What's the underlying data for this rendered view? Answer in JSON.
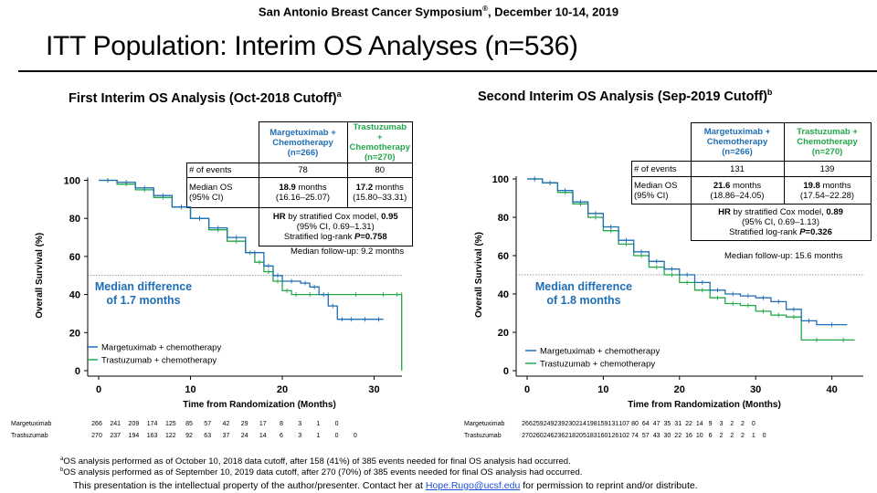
{
  "header": {
    "banner": "San Antonio Breast Cancer Symposium",
    "banner_mark": "®",
    "banner_date": ", December 10-14, 2019",
    "title": "ITT Population: Interim OS Analyses (n=536)"
  },
  "colors": {
    "margetuximab": "#1f6eb5",
    "trastuzumab": "#22a84a"
  },
  "panels": [
    {
      "title": "First Interim OS Analysis (Oct-2018 Cutoff)",
      "title_sup": "a",
      "stats": {
        "arm1_h1": "Margetuximab +",
        "arm1_h2": "Chemotherapy",
        "arm1_h3": "(n=266)",
        "arm2_h1": "Trastuzumab +",
        "arm2_h2": "Chemotherapy",
        "arm2_h3": "(n=270)",
        "events_label": "# of events",
        "events1": "78",
        "events2": "80",
        "os_label1": "Median OS",
        "os_label2": "(95% CI)",
        "os1_val": "18.9",
        "os1_unit": " months",
        "os1_ci": "(16.16–25.07)",
        "os2_val": "17.2",
        "os2_unit": " months",
        "os2_ci": "(15.80–33.31)",
        "hr_label": "HR",
        "hr_text": " by stratified Cox model, ",
        "hr_value": "0.95",
        "hr_ci": "(95% CI, 0.69–1.31)",
        "p_text": "Stratified log-rank ",
        "p_label": "P",
        "p_value": "=0.758"
      },
      "followup": "Median follow-up: 9.2 months",
      "median_diff_1": "Median difference",
      "median_diff_2": "of 1.7 months"
    },
    {
      "title": "Second Interim OS Analysis (Sep-2019 Cutoff)",
      "title_sup": "b",
      "stats": {
        "arm1_h1": "Margetuximab +",
        "arm1_h2": "Chemotherapy",
        "arm1_h3": "(n=266)",
        "arm2_h1": "Trastuzumab +",
        "arm2_h2": "Chemotherapy",
        "arm2_h3": "(n=270)",
        "events_label": "# of events",
        "events1": "131",
        "events2": "139",
        "os_label1": "Median OS",
        "os_label2": "(95% CI)",
        "os1_val": "21.6",
        "os1_unit": " months",
        "os1_ci": "(18.86–24.05)",
        "os2_val": "19.8",
        "os2_unit": " months",
        "os2_ci": "(17.54–22.28)",
        "hr_label": "HR",
        "hr_text": " by stratified Cox model, ",
        "hr_value": "0.89",
        "hr_ci": "(95% CI, 0.69–1.13)",
        "p_text": "Stratified log-rank ",
        "p_label": "P",
        "p_value": "=0.326"
      },
      "followup": "Median follow-up: 15.6 months",
      "median_diff_1": "Median difference",
      "median_diff_2": "of 1.8 months"
    }
  ],
  "chart_data": [
    {
      "type": "line",
      "title": "First Interim OS Analysis (Oct-2018 Cutoff)",
      "xlabel": "Time from Randomization (Months)",
      "ylabel": "Overall Survival (%)",
      "xlim": [
        0,
        34
      ],
      "ylim": [
        0,
        100
      ],
      "xticks": [
        0,
        10,
        20,
        30
      ],
      "yticks": [
        0,
        20,
        40,
        60,
        80,
        100
      ],
      "reference_line": 50,
      "legend": [
        "Margetuximab + chemotherapy",
        "Trastuzumab + chemotherapy"
      ],
      "series": [
        {
          "name": "Margetuximab + chemotherapy",
          "x": [
            0,
            2,
            4,
            6,
            8,
            10,
            12,
            14,
            16,
            18,
            19,
            20,
            22,
            23,
            24,
            25,
            26,
            27,
            28,
            30,
            31
          ],
          "y": [
            100,
            99,
            96,
            92,
            86,
            80,
            75,
            70,
            62,
            55,
            50,
            47,
            46,
            44,
            40,
            34,
            27,
            27,
            27,
            27,
            27
          ]
        },
        {
          "name": "Trastuzumab + chemotherapy",
          "x": [
            0,
            2,
            4,
            6,
            8,
            10,
            12,
            14,
            16,
            17,
            18,
            19,
            20,
            21,
            22,
            24,
            26,
            30,
            32,
            33,
            33
          ],
          "y": [
            100,
            98,
            95,
            91,
            86,
            80,
            74,
            68,
            62,
            57,
            52,
            47,
            42,
            40,
            40,
            40,
            40,
            40,
            40,
            40,
            0
          ]
        }
      ],
      "at_risk": {
        "rows": [
          {
            "label": "Margetuximab",
            "values": [
              "266",
              "241",
              "209",
              "174",
              "125",
              "85",
              "57",
              "42",
              "29",
              "17",
              "8",
              "3",
              "1",
              "0"
            ]
          },
          {
            "label": "Trastuzumab",
            "values": [
              "270",
              "237",
              "194",
              "163",
              "122",
              "92",
              "63",
              "37",
              "24",
              "14",
              "6",
              "3",
              "1",
              "0",
              "0"
            ]
          }
        ]
      }
    },
    {
      "type": "line",
      "title": "Second Interim OS Analysis (Sep-2019 Cutoff)",
      "xlabel": "Time from Randomization (Months)",
      "ylabel": "Overall Survival (%)",
      "xlim": [
        0,
        44
      ],
      "ylim": [
        0,
        100
      ],
      "xticks": [
        0,
        10,
        20,
        30,
        40
      ],
      "yticks": [
        0,
        20,
        40,
        60,
        80,
        100
      ],
      "reference_line": 50,
      "legend": [
        "Margetuximab + chemotherapy",
        "Trastuzumab + chemotherapy"
      ],
      "series": [
        {
          "name": "Margetuximab + chemotherapy",
          "x": [
            0,
            2,
            4,
            6,
            8,
            10,
            12,
            14,
            16,
            18,
            20,
            22,
            24,
            26,
            28,
            30,
            32,
            34,
            36,
            38,
            42
          ],
          "y": [
            100,
            98,
            94,
            88,
            82,
            75,
            68,
            62,
            57,
            53,
            50,
            46,
            42,
            40,
            39,
            38,
            36,
            32,
            26,
            24,
            24
          ]
        },
        {
          "name": "Trastuzumab + chemotherapy",
          "x": [
            0,
            2,
            4,
            6,
            8,
            10,
            12,
            14,
            16,
            18,
            20,
            22,
            24,
            26,
            28,
            30,
            32,
            34,
            36,
            40,
            43
          ],
          "y": [
            100,
            98,
            93,
            87,
            80,
            73,
            66,
            60,
            54,
            50,
            46,
            42,
            38,
            35,
            34,
            31,
            29,
            28,
            16,
            16,
            16
          ]
        }
      ],
      "at_risk": {
        "rows": [
          {
            "label": "Margetuximab",
            "values": [
              "266",
              "259",
              "249",
              "239",
              "230",
              "214",
              "198",
              "159",
              "131",
              "107",
              "80",
              "64",
              "47",
              "35",
              "31",
              "22",
              "14",
              "9",
              "3",
              "2",
              "2",
              "0"
            ]
          },
          {
            "label": "Trastuzumab",
            "values": [
              "270",
              "260",
              "246",
              "236",
              "218",
              "205",
              "183",
              "160",
              "126",
              "102",
              "74",
              "57",
              "43",
              "30",
              "22",
              "16",
              "10",
              "6",
              "2",
              "2",
              "2",
              "1",
              "0"
            ]
          }
        ]
      }
    }
  ],
  "footnotes": {
    "a_mark": "a",
    "a_text": "OS analysis performed as of October 10, 2018 data cutoff, after 158 (41%) of 385 events needed for final OS analysis had occurred.",
    "b_mark": "b",
    "b_text": "OS analysis performed as of September 10, 2019 data cutoff, after 270 (70%) of 385 events needed for final OS analysis had occurred.",
    "ip_text": "This presentation is the intellectual property of the author/presenter. Contact her at ",
    "ip_email": "Hope.Rugo@ucsf.edu",
    "ip_tail": " for permission to reprint and/or distribute."
  }
}
